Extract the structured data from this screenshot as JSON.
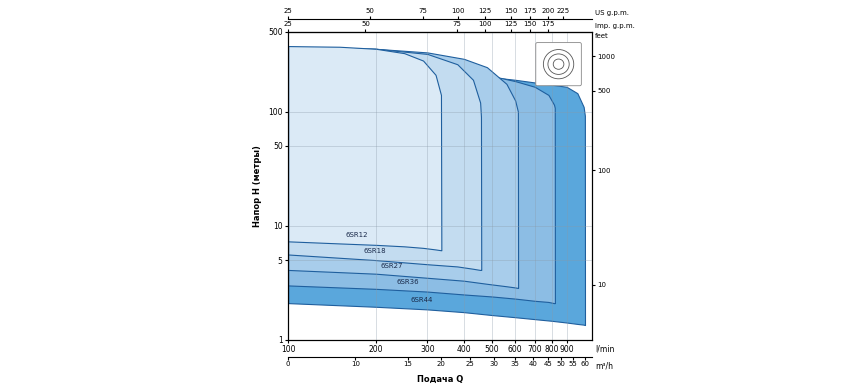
{
  "chart_data": {
    "type": "area",
    "log": true,
    "grid": true,
    "xlabel": "Подача Q",
    "ylabel": "Напор H (метры)",
    "xlim": [
      100,
      1100
    ],
    "xticks": [
      100,
      200,
      300,
      400,
      500,
      600,
      700,
      800,
      900
    ],
    "x_unit": "l/min",
    "ylim": [
      1,
      500
    ],
    "yticks": [
      1,
      5,
      10,
      50,
      100,
      500
    ],
    "y2lim": [
      3.281,
      1640.5
    ],
    "y2ticks": [
      10,
      100,
      500,
      1000
    ],
    "y2_unit": "feet",
    "x2_unit": "m³/h",
    "x2ticks": [
      {
        "value": 100,
        "label": "0"
      },
      {
        "value": 170,
        "label": "10"
      },
      {
        "value": 257,
        "label": "15"
      },
      {
        "value": 334,
        "label": "20"
      },
      {
        "value": 420,
        "label": "25"
      },
      {
        "value": 506,
        "label": "30"
      },
      {
        "value": 598,
        "label": "35"
      },
      {
        "value": 690,
        "label": "40"
      },
      {
        "value": 776,
        "label": "45"
      },
      {
        "value": 860,
        "label": "50"
      },
      {
        "value": 947,
        "label": "55"
      },
      {
        "value": 1040,
        "label": "60"
      }
    ],
    "x3_unit": "US g.p.m.",
    "x3ticks": [
      {
        "value": 100,
        "label": "25"
      },
      {
        "value": 191,
        "label": "50"
      },
      {
        "value": 290,
        "label": "75"
      },
      {
        "value": 383,
        "label": "100"
      },
      {
        "value": 473,
        "label": "125"
      },
      {
        "value": 580,
        "label": "150"
      },
      {
        "value": 673,
        "label": "175"
      },
      {
        "value": 776,
        "label": "200"
      },
      {
        "value": 875,
        "label": "225"
      }
    ],
    "x4_unit": "Imp. g.p.m.",
    "x4ticks": [
      {
        "value": 100,
        "label": "25"
      },
      {
        "value": 184,
        "label": "50"
      },
      {
        "value": 379,
        "label": "75"
      },
      {
        "value": 473,
        "label": "100"
      },
      {
        "value": 580,
        "label": "125"
      },
      {
        "value": 673,
        "label": "150"
      },
      {
        "value": 776,
        "label": "175"
      }
    ],
    "series": [
      {
        "name": "6SR12",
        "color": "#dbeaf6",
        "x": [
          100,
          150,
          200,
          250,
          290,
          320,
          334,
          335
        ],
        "values": [
          375,
          370,
          355,
          325,
          280,
          210,
          140,
          6.1
        ],
        "lower": [
          7.3,
          7.0,
          6.8,
          6.6,
          6.4,
          6.2,
          6.1,
          6.1
        ]
      },
      {
        "name": "6SR18",
        "color": "#c3dcf0",
        "x": [
          100,
          200,
          300,
          380,
          430,
          455,
          458,
          459
        ],
        "values": [
          370,
          355,
          320,
          260,
          190,
          120,
          90,
          4.1
        ],
        "lower": [
          5.6,
          5.0,
          4.6,
          4.4,
          4.2,
          4.1,
          4.1,
          4.1
        ]
      },
      {
        "name": "6SR27",
        "color": "#a8cdeb",
        "x": [
          100,
          200,
          300,
          400,
          480,
          560,
          600,
          613,
          614
        ],
        "values": [
          365,
          355,
          330,
          290,
          245,
          175,
          125,
          100,
          2.85
        ],
        "lower": [
          4.1,
          3.8,
          3.5,
          3.3,
          3.1,
          2.95,
          2.88,
          2.85,
          2.85
        ]
      },
      {
        "name": "6SR36",
        "color": "#8cbde4",
        "x": [
          100,
          200,
          300,
          400,
          500,
          600,
          700,
          780,
          815,
          820,
          821
        ],
        "values": [
          270,
          260,
          245,
          225,
          205,
          185,
          165,
          140,
          115,
          108,
          2.1
        ],
        "lower": [
          3.0,
          2.8,
          2.65,
          2.5,
          2.4,
          2.3,
          2.2,
          2.15,
          2.1,
          2.1,
          2.1
        ]
      },
      {
        "name": "6SR44",
        "color": "#5aa7dc",
        "x": [
          100,
          200,
          300,
          400,
          500,
          600,
          700,
          800,
          900,
          980,
          1030,
          1040,
          1041
        ],
        "values": [
          260,
          250,
          235,
          220,
          200,
          190,
          180,
          172,
          165,
          145,
          110,
          92,
          1.35
        ],
        "lower": [
          2.1,
          1.95,
          1.85,
          1.75,
          1.65,
          1.58,
          1.52,
          1.47,
          1.42,
          1.38,
          1.36,
          1.35,
          1.35
        ]
      }
    ]
  }
}
